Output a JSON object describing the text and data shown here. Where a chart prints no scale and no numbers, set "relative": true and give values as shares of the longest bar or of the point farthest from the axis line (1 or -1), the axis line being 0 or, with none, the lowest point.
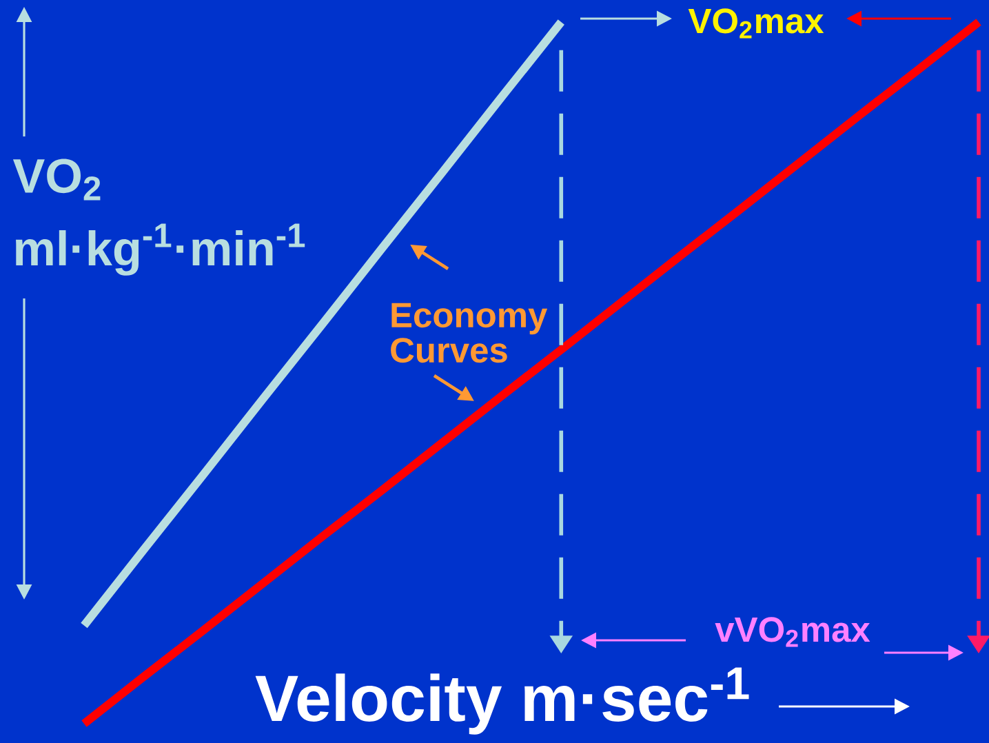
{
  "chart_data": {
    "type": "line",
    "relative": true,
    "xlabel": "Velocity  m·sec$^{-1}$",
    "ylabel": "VO$_{2}$ ml·kg$^{-1}$·min$^{-1}$",
    "annotations": [
      "VO$_{2}$max",
      "vVO$_{2}$max",
      "Economy Curves"
    ],
    "categories": [
      null,
      null,
      null,
      null,
      null,
      null,
      null,
      null,
      null,
      null,
      null,
      null,
      null,
      null,
      null,
      null
    ],
    "series": [
      {
        "color": "#b8dee0",
        "values": [
          0.14,
          0.248,
          0.355,
          0.463,
          0.57,
          0.678,
          0.785,
          0.893,
          1,
          null,
          null,
          null,
          null,
          null,
          null,
          null
        ]
      },
      {
        "color": "#ff0000",
        "values": [
          0,
          0.067,
          0.133,
          0.2,
          0.267,
          0.333,
          0.4,
          0.467,
          0.533,
          0.6,
          0.667,
          0.733,
          0.8,
          0.867,
          0.933,
          1
        ]
      }
    ]
  }
}
